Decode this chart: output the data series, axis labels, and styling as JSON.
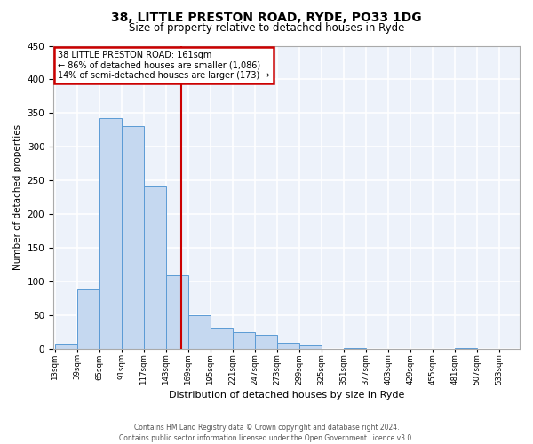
{
  "title": "38, LITTLE PRESTON ROAD, RYDE, PO33 1DG",
  "subtitle": "Size of property relative to detached houses in Ryde",
  "xlabel": "Distribution of detached houses by size in Ryde",
  "ylabel": "Number of detached properties",
  "bin_edges": [
    13,
    39,
    65,
    91,
    117,
    143,
    169,
    195,
    221,
    247,
    273,
    299,
    325,
    351,
    377,
    403,
    429,
    455,
    481,
    507,
    533
  ],
  "bar_heights": [
    7,
    88,
    342,
    330,
    241,
    109,
    49,
    31,
    25,
    21,
    9,
    5,
    0,
    1,
    0,
    0,
    0,
    0,
    1,
    0
  ],
  "bar_color": "#c5d8f0",
  "bar_edge_color": "#5b9bd5",
  "property_value": 161,
  "vline_color": "#cc0000",
  "annotation_line1": "38 LITTLE PRESTON ROAD: 161sqm",
  "annotation_line2": "← 86% of detached houses are smaller (1,086)",
  "annotation_line3": "14% of semi-detached houses are larger (173) →",
  "annotation_box_color": "#cc0000",
  "ylim": [
    0,
    450
  ],
  "yticks": [
    0,
    50,
    100,
    150,
    200,
    250,
    300,
    350,
    400,
    450
  ],
  "footer_line1": "Contains HM Land Registry data © Crown copyright and database right 2024.",
  "footer_line2": "Contains public sector information licensed under the Open Government Licence v3.0.",
  "bg_color": "#edf2fa",
  "grid_color": "#ffffff",
  "fig_bg_color": "#ffffff"
}
